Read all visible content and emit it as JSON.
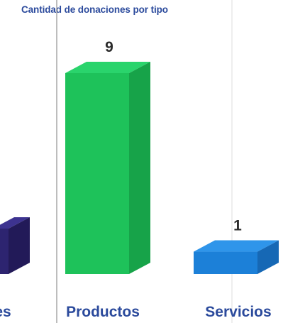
{
  "chart_data": {
    "type": "bar",
    "title": "Cantidad de donaciones por tipo",
    "categories": [
      "es",
      "Productos",
      "Servicios"
    ],
    "values": [
      null,
      9,
      1
    ],
    "data_labels": [
      "",
      "9",
      "1"
    ],
    "bar_colors": {
      "front": [
        "#2d2470",
        "#1ec25a",
        "#1c80d8"
      ],
      "top": [
        "#3d3390",
        "#2ad46c",
        "#2f95ea"
      ],
      "side": [
        "#221a58",
        "#17a349",
        "#1668b5"
      ]
    },
    "label_colors": [
      "#2b4a9c",
      "#2b4a9c",
      "#2b4a9c"
    ],
    "ylim": [
      0,
      9
    ],
    "grid": false,
    "legend": "none"
  }
}
